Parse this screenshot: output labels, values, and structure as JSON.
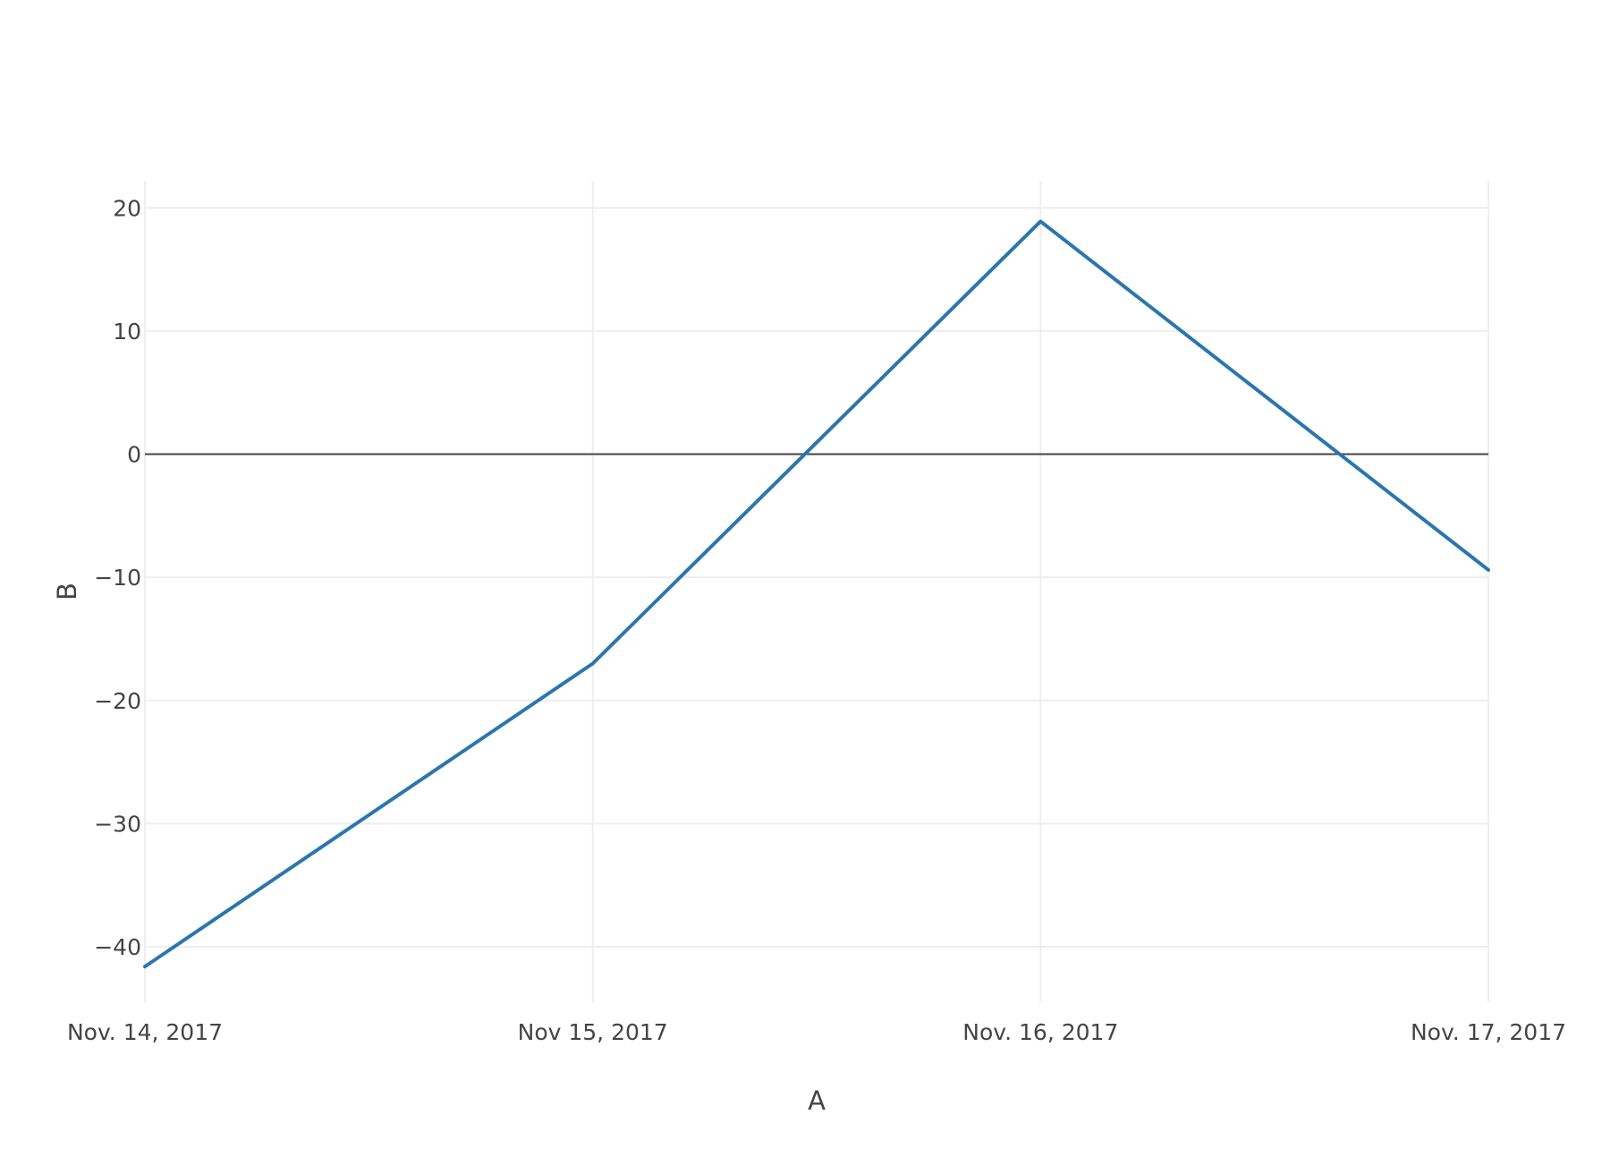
{
  "chart_data": {
    "type": "line",
    "title": "",
    "xlabel": "A",
    "ylabel": "B",
    "x": [
      "2017-11-14",
      "2017-11-15",
      "2017-11-16",
      "2017-11-17"
    ],
    "x_tick_labels": [
      "Nov. 14, 2017",
      "Nov 15, 2017",
      "Nov. 16, 2017",
      "Nov. 17, 2017"
    ],
    "y_ticks": [
      20,
      10,
      0,
      -10,
      -20,
      -30,
      -40
    ],
    "y_tick_labels": [
      "20",
      "10",
      "0",
      "−10",
      "−20",
      "−30",
      "−40"
    ],
    "ylim": [
      -44.5,
      22.2
    ],
    "grid": true,
    "zero_line": true,
    "series": [
      {
        "values": [
          -41.6,
          -17.0,
          18.9,
          -9.4
        ],
        "color": "#2b76ad"
      }
    ]
  }
}
